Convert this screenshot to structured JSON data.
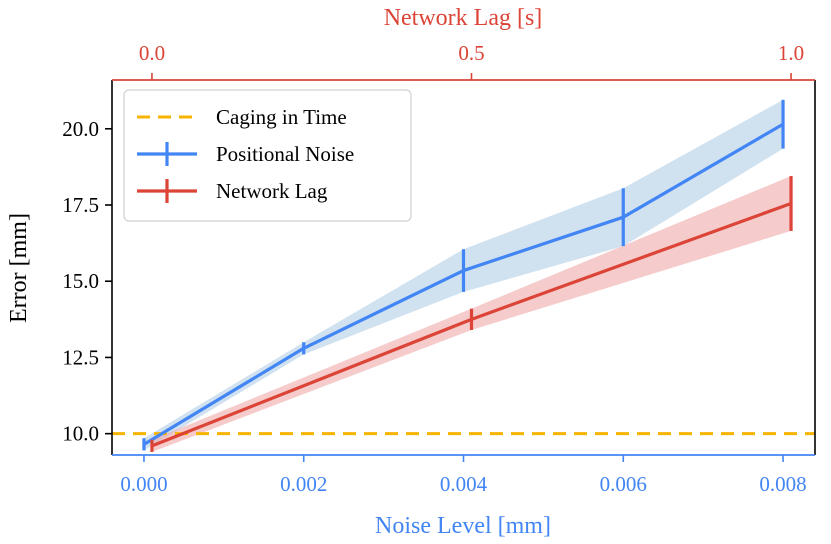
{
  "chart_data": {
    "type": "line",
    "xlabel": "Noise Level [mm]",
    "x2label": "Network Lag [s]",
    "ylabel": "Error [mm]",
    "xlim": [
      -0.0004,
      0.0084
    ],
    "x2lim": [
      -0.0625,
      1.0375
    ],
    "ylim": [
      9.3,
      21.6
    ],
    "x_ticks": [
      "0.000",
      "0.002",
      "0.004",
      "0.006",
      "0.008"
    ],
    "x_tick_values": [
      0,
      0.002,
      0.004,
      0.006,
      0.008
    ],
    "x2_ticks": [
      "0.0",
      "0.5",
      "1.0"
    ],
    "x2_tick_values": [
      0,
      0.5,
      1.0
    ],
    "y_ticks": [
      "10.0",
      "12.5",
      "15.0",
      "17.5",
      "20.0"
    ],
    "y_tick_values": [
      10,
      12.5,
      15,
      17.5,
      20
    ],
    "grid": false,
    "legend_position": "upper-left",
    "series": [
      {
        "name": "Caging in Time",
        "style": "dashed",
        "color": "#f5b400",
        "axis": "bottom",
        "x": [
          -0.0004,
          0.0084
        ],
        "y": [
          10.0,
          10.0
        ]
      },
      {
        "name": "Positional Noise",
        "style": "solid",
        "color": "#4285f4",
        "band_color": "#a9c8e4",
        "axis": "bottom",
        "x": [
          0,
          0.002,
          0.004,
          0.006,
          0.008
        ],
        "y": [
          9.65,
          12.8,
          15.35,
          17.1,
          20.15
        ],
        "err": [
          0.2,
          0.2,
          0.7,
          0.95,
          0.8
        ]
      },
      {
        "name": "Network Lag",
        "style": "solid",
        "color": "#db4437",
        "band_color": "#eda3a0",
        "axis": "top",
        "x": [
          0,
          0.5,
          1.0
        ],
        "y": [
          9.6,
          13.75,
          17.55
        ],
        "err": [
          0.2,
          0.35,
          0.9
        ]
      }
    ]
  }
}
